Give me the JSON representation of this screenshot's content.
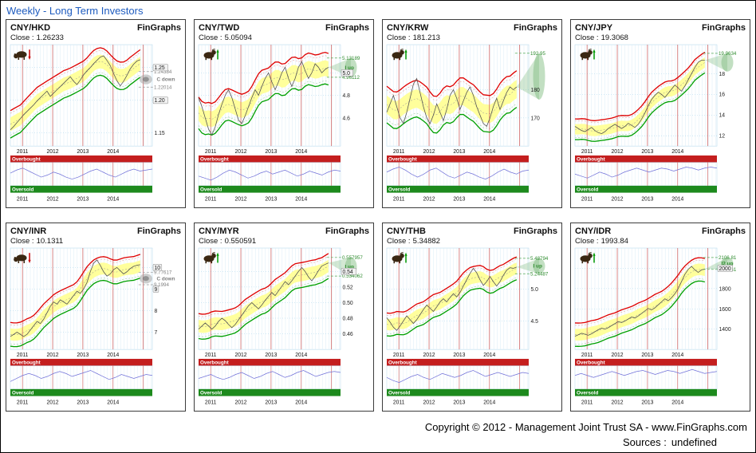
{
  "header": {
    "title": "Weekly - Long Term Investors"
  },
  "footer": {
    "copyright": "Copyright © 2012 - Management Joint Trust SA - www.FinGraphs.com",
    "sources_label": "Sources :",
    "sources_value": "undefined"
  },
  "labels": {
    "brand": "FinGraphs",
    "close_prefix": "Close :",
    "overbought": "Overbought",
    "oversold": "Oversold"
  },
  "axis_years": [
    "2011",
    "2012",
    "2013",
    "2014"
  ],
  "colors": {
    "link": "#1d5bbf",
    "plot_border": "#b9dcee",
    "grid": "#d9ecf7",
    "grid_h": "#a9d6ec",
    "band": "#ffff9c",
    "env_red": "#e00000",
    "env_green": "#00a000",
    "price": "#555555",
    "year_line": "#cc5555",
    "overbought": "#c41e1e",
    "oversold": "#1d8a1d",
    "oscillator": "#7070d8",
    "bull": "#2e8b2e",
    "bear": "#8a8a8a",
    "icon": "#3a2712",
    "arrow_up": "#009900",
    "arrow_down": "#cc0000",
    "cone": "rgba(120,185,120,0.33)",
    "cone_end": "rgba(120,185,120,0.45)"
  },
  "chart_data": [
    {
      "type": "line",
      "title": "CNY/HKD",
      "close": "1.26233",
      "trend": "bear",
      "trend_label": "C down",
      "x_range": [
        2010.6,
        2015.3
      ],
      "x_end": 2014.9,
      "ylim": [
        1.13,
        1.285
      ],
      "envelope": 0.021,
      "yticks": [
        {
          "v": 1.25,
          "label": "1.25",
          "box": true
        },
        {
          "v": 1.2,
          "label": "1.20",
          "box": true
        },
        {
          "v": 1.15,
          "label": "1.15"
        }
      ],
      "targets": {
        "up": 1.24384,
        "up_label": "1.24384",
        "down": 1.22014,
        "down_label": "1.22014"
      },
      "series": [
        1.155,
        1.16,
        1.166,
        1.172,
        1.178,
        1.183,
        1.188,
        1.193,
        1.199,
        1.204,
        1.209,
        1.214,
        1.206,
        1.211,
        1.216,
        1.221,
        1.226,
        1.231,
        1.236,
        1.229,
        1.224,
        1.231,
        1.239,
        1.245,
        1.25,
        1.256,
        1.261,
        1.266,
        1.268,
        1.261,
        1.253,
        1.241,
        1.23,
        1.222,
        1.229,
        1.238,
        1.248,
        1.255,
        1.26,
        1.262
      ],
      "oscillator": [
        0.55,
        0.7,
        0.8,
        0.65,
        0.5,
        0.35,
        0.45,
        0.6,
        0.5,
        0.35,
        0.25,
        0.35,
        0.5,
        0.65,
        0.75,
        0.6,
        0.45,
        0.35,
        0.5,
        0.65,
        0.75,
        0.65,
        0.7,
        0.75
      ]
    },
    {
      "type": "line",
      "title": "CNY/TWD",
      "close": "5.05094",
      "trend": "bull",
      "trend_label": "I up",
      "x_range": [
        2010.6,
        2015.3
      ],
      "x_end": 2014.9,
      "ylim": [
        4.35,
        5.25
      ],
      "envelope": 0.14,
      "yticks": [
        {
          "v": 5.0,
          "label": "5.0",
          "box": true
        },
        {
          "v": 4.8,
          "label": "4.8"
        },
        {
          "v": 4.6,
          "label": "4.6"
        }
      ],
      "targets": {
        "up": 5.13189,
        "up_label": "5.13189",
        "down": 4.96112,
        "down_label": "4.96112"
      },
      "series": [
        4.78,
        4.7,
        4.6,
        4.5,
        4.45,
        4.52,
        4.63,
        4.72,
        4.8,
        4.85,
        4.78,
        4.68,
        4.58,
        4.55,
        4.62,
        4.7,
        4.78,
        4.85,
        4.8,
        4.88,
        4.95,
        5.0,
        4.92,
        4.85,
        4.92,
        5.0,
        5.05,
        4.95,
        4.88,
        4.95,
        5.05,
        5.1,
        5.02,
        4.95,
        5.0,
        5.08,
        5.05,
        5.0,
        5.03,
        5.05
      ],
      "oscillator": [
        0.4,
        0.3,
        0.2,
        0.35,
        0.55,
        0.7,
        0.6,
        0.45,
        0.3,
        0.4,
        0.55,
        0.65,
        0.5,
        0.6,
        0.7,
        0.55,
        0.4,
        0.5,
        0.65,
        0.55,
        0.45,
        0.6,
        0.7,
        0.65
      ]
    },
    {
      "type": "line",
      "title": "CNY/KRW",
      "close": "181.213",
      "trend": "bull",
      "trend_label": "",
      "x_range": [
        2010.6,
        2015.3
      ],
      "x_end": 2014.9,
      "ylim": [
        160,
        196
      ],
      "envelope": 6.5,
      "yticks": [
        {
          "v": 180,
          "label": "180"
        },
        {
          "v": 170,
          "label": "170"
        }
      ],
      "targets": {
        "up": 192.95,
        "up_label": "192.95",
        "down": 176.5,
        "down_label": ""
      },
      "series": [
        172,
        175,
        178,
        174,
        170,
        168,
        172,
        177,
        182,
        184,
        179,
        174,
        170,
        168,
        171,
        175,
        172,
        169,
        173,
        178,
        180,
        177,
        173,
        176,
        179,
        181,
        178,
        174,
        171,
        168,
        167,
        170,
        174,
        177,
        173,
        176,
        179,
        181,
        180,
        181
      ],
      "oscillator": [
        0.6,
        0.75,
        0.85,
        0.7,
        0.5,
        0.35,
        0.5,
        0.7,
        0.8,
        0.6,
        0.4,
        0.3,
        0.45,
        0.6,
        0.5,
        0.35,
        0.25,
        0.4,
        0.6,
        0.75,
        0.6,
        0.5,
        0.65,
        0.7
      ]
    },
    {
      "type": "line",
      "title": "CNY/JPY",
      "close": "19.3068",
      "trend": "bull",
      "trend_label": "",
      "x_range": [
        2010.6,
        2015.3
      ],
      "x_end": 2014.9,
      "ylim": [
        11,
        20.8
      ],
      "envelope": 1.0,
      "yticks": [
        {
          "v": 18,
          "label": "18"
        },
        {
          "v": 16,
          "label": "16"
        },
        {
          "v": 14,
          "label": "14"
        },
        {
          "v": 12,
          "label": "12"
        }
      ],
      "targets": {
        "up": 19.9634,
        "up_label": "19.9634",
        "down": 18.2,
        "down_label": ""
      },
      "series": [
        12.9,
        12.7,
        12.5,
        12.4,
        12.6,
        12.8,
        12.5,
        12.3,
        12.2,
        12.4,
        12.7,
        12.9,
        13.1,
        12.9,
        12.7,
        12.9,
        13.2,
        13.0,
        12.8,
        13.1,
        13.6,
        14.2,
        14.9,
        15.5,
        15.9,
        16.2,
        16.0,
        15.7,
        16.1,
        16.5,
        16.9,
        16.6,
        16.3,
        16.8,
        17.4,
        18.0,
        18.6,
        19.1,
        19.3,
        19.31
      ],
      "oscillator": [
        0.5,
        0.4,
        0.3,
        0.45,
        0.6,
        0.5,
        0.35,
        0.45,
        0.6,
        0.7,
        0.8,
        0.7,
        0.6,
        0.7,
        0.8,
        0.75,
        0.65,
        0.75,
        0.85,
        0.8,
        0.7,
        0.8,
        0.85,
        0.8
      ]
    },
    {
      "type": "line",
      "title": "CNY/INR",
      "close": "10.1311",
      "trend": "bear",
      "trend_label": "C down",
      "x_range": [
        2010.6,
        2015.3
      ],
      "x_end": 2014.9,
      "ylim": [
        6.2,
        10.9
      ],
      "envelope": 0.55,
      "yticks": [
        {
          "v": 10,
          "label": "10",
          "box": true
        },
        {
          "v": 9,
          "label": "9",
          "box": true
        },
        {
          "v": 8,
          "label": "8"
        },
        {
          "v": 7,
          "label": "7"
        }
      ],
      "targets": {
        "up": 9.77617,
        "up_label": "9.77617",
        "down": 9.1994,
        "down_label": "9.1994"
      },
      "series": [
        6.8,
        6.9,
        7.0,
        6.9,
        6.8,
        6.9,
        7.1,
        7.3,
        7.5,
        7.4,
        7.6,
        7.9,
        8.2,
        8.4,
        8.3,
        8.5,
        8.4,
        8.3,
        8.5,
        8.7,
        8.9,
        8.8,
        9.0,
        9.3,
        9.8,
        10.2,
        10.35,
        10.1,
        9.8,
        9.6,
        9.7,
        9.9,
        10.0,
        9.85,
        9.7,
        9.8,
        9.95,
        10.05,
        10.1,
        10.13
      ],
      "oscillator": [
        0.3,
        0.45,
        0.6,
        0.7,
        0.6,
        0.45,
        0.55,
        0.7,
        0.8,
        0.7,
        0.55,
        0.65,
        0.75,
        0.85,
        0.7,
        0.55,
        0.4,
        0.5,
        0.65,
        0.55,
        0.45,
        0.55,
        0.65,
        0.6
      ]
    },
    {
      "type": "line",
      "title": "CNY/MYR",
      "close": "0.550591",
      "trend": "bull",
      "trend_label": "I up",
      "x_range": [
        2010.6,
        2015.3
      ],
      "x_end": 2014.9,
      "ylim": [
        0.44,
        0.57
      ],
      "envelope": 0.016,
      "yticks": [
        {
          "v": 0.54,
          "label": "0.54",
          "box": true
        },
        {
          "v": 0.52,
          "label": "0.52"
        },
        {
          "v": 0.5,
          "label": "0.50"
        },
        {
          "v": 0.48,
          "label": "0.48"
        },
        {
          "v": 0.46,
          "label": "0.46"
        }
      ],
      "targets": {
        "up": 0.557957,
        "up_label": "0.557957",
        "down": 0.534062,
        "down_label": "0.534062"
      },
      "series": [
        0.466,
        0.47,
        0.474,
        0.47,
        0.466,
        0.47,
        0.476,
        0.48,
        0.477,
        0.472,
        0.468,
        0.472,
        0.478,
        0.484,
        0.49,
        0.496,
        0.5,
        0.496,
        0.492,
        0.497,
        0.503,
        0.508,
        0.513,
        0.509,
        0.515,
        0.521,
        0.527,
        0.523,
        0.528,
        0.534,
        0.54,
        0.545,
        0.54,
        0.533,
        0.528,
        0.534,
        0.541,
        0.547,
        0.549,
        0.551
      ],
      "oscillator": [
        0.45,
        0.55,
        0.65,
        0.5,
        0.4,
        0.5,
        0.65,
        0.75,
        0.6,
        0.45,
        0.55,
        0.7,
        0.8,
        0.65,
        0.5,
        0.6,
        0.75,
        0.85,
        0.7,
        0.55,
        0.65,
        0.75,
        0.8,
        0.75
      ]
    },
    {
      "type": "line",
      "title": "CNY/THB",
      "close": "5.34882",
      "trend": "bull",
      "trend_label": "I up",
      "x_range": [
        2010.6,
        2015.3
      ],
      "x_end": 2014.9,
      "ylim": [
        4.05,
        5.65
      ],
      "envelope": 0.18,
      "yticks": [
        {
          "v": 5.0,
          "label": "5.0"
        },
        {
          "v": 4.5,
          "label": "4.5"
        }
      ],
      "targets": {
        "up": 5.48794,
        "up_label": "5.48794",
        "down": 5.24487,
        "down_label": "5.24487"
      },
      "series": [
        4.55,
        4.48,
        4.4,
        4.35,
        4.42,
        4.5,
        4.58,
        4.52,
        4.46,
        4.52,
        4.6,
        4.68,
        4.75,
        4.7,
        4.65,
        4.72,
        4.8,
        4.85,
        4.8,
        4.87,
        4.93,
        4.88,
        4.95,
        5.05,
        5.15,
        5.25,
        5.33,
        5.26,
        5.15,
        5.06,
        5.12,
        5.2,
        5.12,
        5.05,
        5.12,
        5.22,
        5.3,
        5.34,
        5.33,
        5.35
      ],
      "oscillator": [
        0.5,
        0.35,
        0.25,
        0.4,
        0.55,
        0.65,
        0.5,
        0.4,
        0.55,
        0.7,
        0.6,
        0.5,
        0.6,
        0.75,
        0.85,
        0.7,
        0.55,
        0.65,
        0.75,
        0.65,
        0.55,
        0.65,
        0.75,
        0.7
      ]
    },
    {
      "type": "line",
      "title": "CNY/IDR",
      "close": "1993.84",
      "trend": "bull",
      "trend_label": "I2 up",
      "x_range": [
        2010.6,
        2015.3
      ],
      "x_end": 2014.9,
      "ylim": [
        1200,
        2200
      ],
      "envelope": 115,
      "yticks": [
        {
          "v": 2000,
          "label": "2000",
          "box": true
        },
        {
          "v": 1800,
          "label": "1800"
        },
        {
          "v": 1600,
          "label": "1600"
        },
        {
          "v": 1400,
          "label": "1400"
        }
      ],
      "targets": {
        "up": 2106.81,
        "up_label": "2106.81",
        "down": 1989.41,
        "down_label": "1989.41"
      },
      "series": [
        1330,
        1345,
        1360,
        1350,
        1340,
        1355,
        1375,
        1395,
        1410,
        1400,
        1415,
        1435,
        1455,
        1475,
        1465,
        1480,
        1500,
        1520,
        1510,
        1530,
        1555,
        1580,
        1605,
        1590,
        1610,
        1640,
        1670,
        1700,
        1680,
        1710,
        1750,
        1800,
        1870,
        1940,
        1990,
        2020,
        1985,
        1960,
        1985,
        1994
      ],
      "oscillator": [
        0.6,
        0.7,
        0.6,
        0.5,
        0.6,
        0.7,
        0.8,
        0.7,
        0.6,
        0.7,
        0.8,
        0.85,
        0.75,
        0.65,
        0.75,
        0.85,
        0.8,
        0.7,
        0.8,
        0.9,
        0.8,
        0.7,
        0.75,
        0.8
      ]
    }
  ]
}
